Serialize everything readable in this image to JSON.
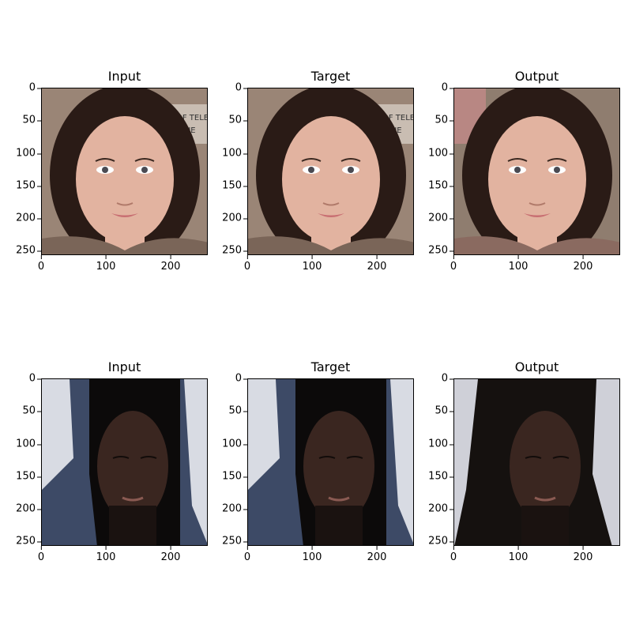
{
  "panels": [
    {
      "title": "Input",
      "image": "woman-portrait"
    },
    {
      "title": "Target",
      "image": "woman-portrait"
    },
    {
      "title": "Output",
      "image": "woman-portrait-generated"
    },
    {
      "title": "Input",
      "image": "man-hooded-portrait"
    },
    {
      "title": "Target",
      "image": "man-hooded-portrait"
    },
    {
      "title": "Output",
      "image": "man-portrait-generated"
    }
  ],
  "axis": {
    "yticks": [
      "0",
      "50",
      "100",
      "150",
      "200",
      "250"
    ],
    "xticks": [
      "0",
      "100",
      "200"
    ]
  },
  "colors": {
    "background": "#ffffff",
    "woman_bg": "#9a8576",
    "woman_skin": "#e2b3a0",
    "woman_hair": "#2a1b16",
    "output_pink": "#c98b8b",
    "man_bg": "#d8dbe3",
    "man_hood": "#3d4a66",
    "man_skin": "#3a2620"
  }
}
